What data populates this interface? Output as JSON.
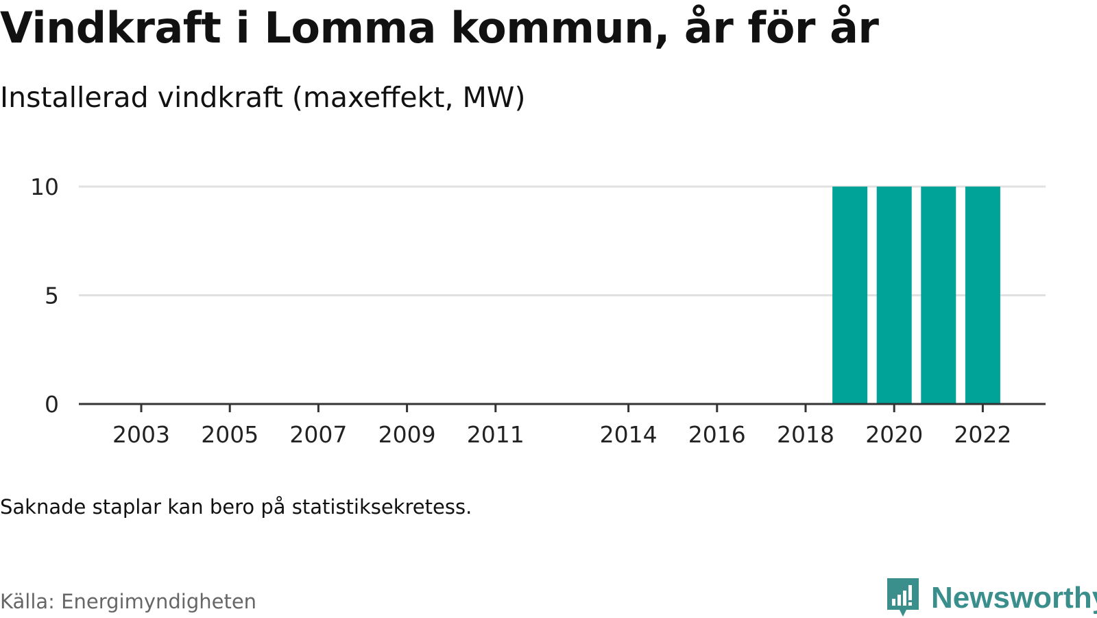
{
  "header": {
    "title": "Vindkraft i Lomma kommun, år för år",
    "subtitle": "Installerad vindkraft (maxeffekt, MW)"
  },
  "footer": {
    "note": "Saknade staplar kan bero på statistiksekretess.",
    "source": "Källa: Energimyndigheten",
    "brand": "Newsworthy",
    "logo_icon": "bar-chart-speech-bubble-icon"
  },
  "colors": {
    "bar": "#00a398",
    "grid": "#e0e0e0",
    "axis": "#333333",
    "brand": "#3a8f8c"
  },
  "chart_data": {
    "type": "bar",
    "x_tick_labels": [
      "2003",
      "2005",
      "2007",
      "2009",
      "2011",
      "2014",
      "2016",
      "2018",
      "2020",
      "2022"
    ],
    "y_tick_labels": [
      "0",
      "5",
      "10"
    ],
    "categories": [
      "2019",
      "2020",
      "2021",
      "2022"
    ],
    "values": [
      10,
      10,
      10,
      10
    ],
    "xlim": [
      2002,
      2023
    ],
    "ylim": [
      0,
      10
    ],
    "title": "Vindkraft i Lomma kommun, år för år",
    "subtitle": "Installerad vindkraft (maxeffekt, MW)",
    "grid": true,
    "legend": "none"
  }
}
